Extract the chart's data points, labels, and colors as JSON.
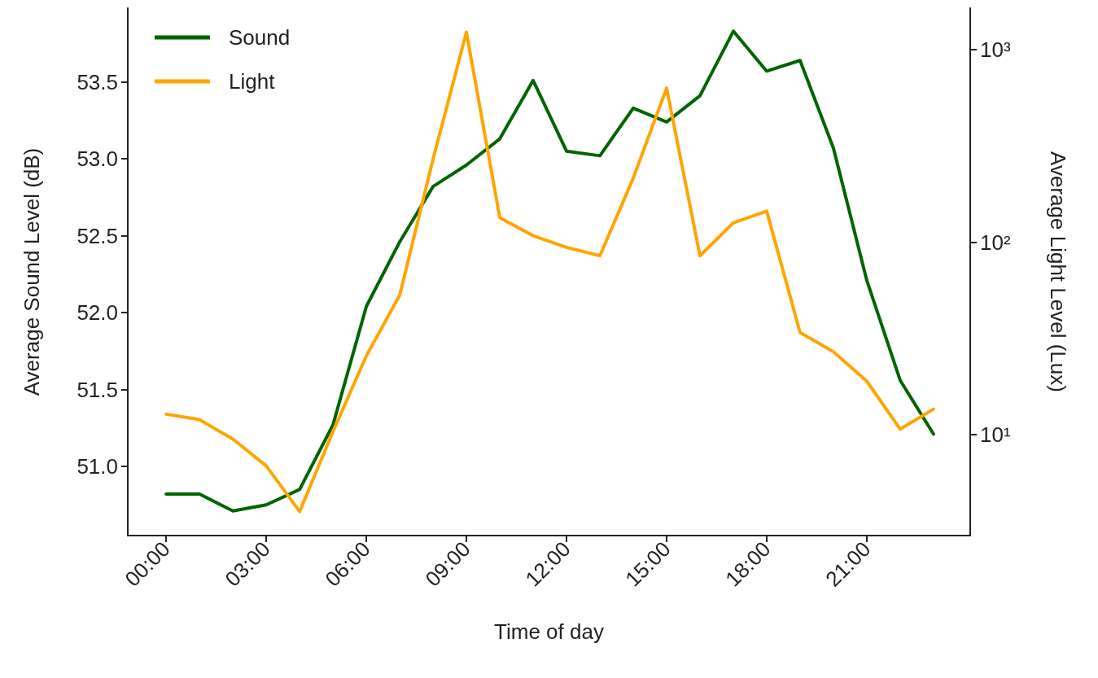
{
  "chart_data": {
    "type": "line",
    "xlabel": "Time of day",
    "ylabel": "Average Sound Level (dB)",
    "y2label": "Average Light Level (Lux)",
    "x": [
      0,
      1,
      2,
      3,
      4,
      5,
      6,
      7,
      8,
      9,
      10,
      11,
      12,
      13,
      14,
      15,
      16,
      17,
      18,
      19,
      20,
      21,
      22,
      23
    ],
    "series": [
      {
        "name": "Sound",
        "color": "#006400",
        "values": [
          50.82,
          50.82,
          50.71,
          50.75,
          50.85,
          51.27,
          52.04,
          52.46,
          52.82,
          52.96,
          53.13,
          53.51,
          53.05,
          53.02,
          53.33,
          53.24,
          53.41,
          53.83,
          53.57,
          53.64,
          53.07,
          52.21,
          51.56,
          51.21
        ]
      },
      {
        "name": "Light",
        "color": "#ffa500",
        "axis": "y2",
        "values": [
          12.8,
          12.0,
          9.5,
          6.9,
          4.0,
          10.4,
          25.7,
          53,
          270,
          1230,
          134,
          108,
          94,
          85,
          215,
          630,
          85,
          126,
          145,
          34,
          27,
          19,
          10.7,
          13.6
        ]
      }
    ],
    "xlim": [
      -1.15,
      24.1
    ],
    "xticks": [
      {
        "value": 0,
        "label": "00:00"
      },
      {
        "value": 3,
        "label": "03:00"
      },
      {
        "value": 6,
        "label": "06:00"
      },
      {
        "value": 9,
        "label": "09:00"
      },
      {
        "value": 12,
        "label": "12:00"
      },
      {
        "value": 15,
        "label": "15:00"
      },
      {
        "value": 18,
        "label": "18:00"
      },
      {
        "value": 21,
        "label": "21:00"
      }
    ],
    "ylim": [
      50.55,
      53.98
    ],
    "yticks": [
      {
        "value": 51,
        "label": "51.0"
      },
      51.5,
      {
        "value": 52,
        "label": "52.0"
      },
      52.5,
      {
        "value": 53,
        "label": "53.0"
      },
      53.5
    ],
    "y2lim": [
      3.0,
      1640
    ],
    "y2ticks": [
      {
        "value": 10,
        "label": "10¹"
      },
      {
        "value": 100,
        "label": "10²"
      },
      {
        "value": 1000,
        "label": "10³"
      }
    ],
    "log": "y2",
    "grid": false,
    "legend": "top left"
  }
}
